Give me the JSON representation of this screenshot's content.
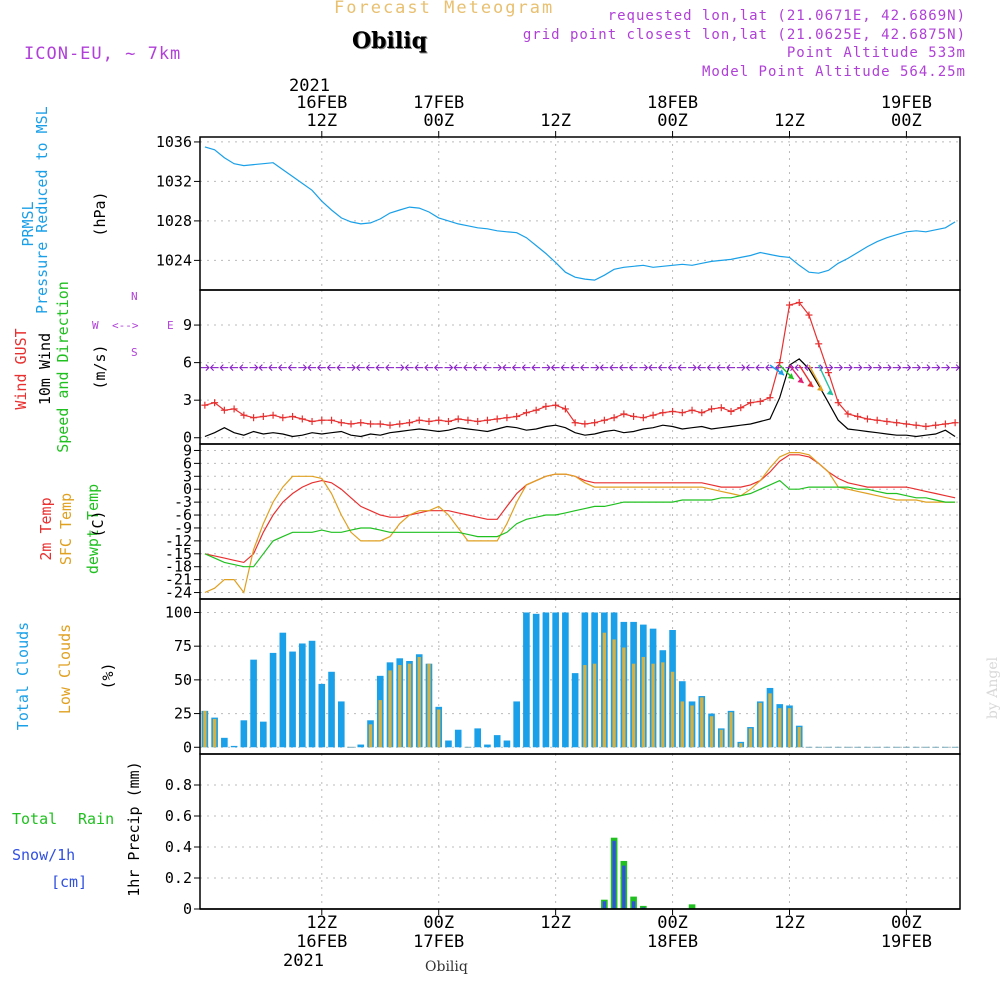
{
  "header": {
    "main_title": "Forecast Meteogram",
    "station": "Obiliq",
    "model": "ICON-EU, ~ 7km",
    "requested": "requested lon,lat (21.0671E, 42.6869N)",
    "grid_point": "grid point closest lon,lat (21.0625E, 42.6875N)",
    "point_altitude": "Point Altitude 533m",
    "model_altitude": "Model Point Altitude 564.25m",
    "credit": "by Angel",
    "footer_station": "Obiliq"
  },
  "colors": {
    "pressure": "#1aa0e8",
    "gust": "#e83030",
    "wind": "#000000",
    "temp2m": "#e83030",
    "sfc": "#e0a020",
    "dew": "#20c020",
    "total_clouds": "#1aa0e8",
    "low_clouds": "#d8b040",
    "rain": "#20c020",
    "snow": "#3050e0",
    "arrows": "#8a20c8",
    "title": "#e8c070",
    "purple": "#b040d8"
  },
  "time_axis": {
    "top_year": "2021",
    "bottom_year": "2021",
    "ticks": [
      {
        "hour": 12,
        "time": "12Z",
        "date": "16FEB"
      },
      {
        "hour": 24,
        "time": "00Z",
        "date": "17FEB"
      },
      {
        "hour": 36,
        "time": "12Z",
        "date": ""
      },
      {
        "hour": 48,
        "time": "00Z",
        "date": "18FEB"
      },
      {
        "hour": 60,
        "time": "12Z",
        "date": ""
      },
      {
        "hour": 72,
        "time": "00Z",
        "date": "19FEB"
      }
    ]
  },
  "labels": {
    "pressure": [
      "PRMSL",
      "Pressure Reduced to MSL",
      "(hPa)"
    ],
    "wind": [
      "Wind GUST",
      "10m Wind",
      "Speed and Direction",
      "(m/s)"
    ],
    "compass": {
      "n": "N",
      "s": "S",
      "w": "W",
      "e": "E"
    },
    "temp": [
      "2m Temp",
      "SFC Temp",
      "dewpt Temp",
      "(C)"
    ],
    "clouds": [
      "Total Clouds",
      "Low Clouds",
      "(%)"
    ],
    "precip": [
      "1hr Precip (mm)"
    ],
    "rain_legend": [
      "Total",
      "Rain"
    ],
    "snow_legend": [
      "Snow/1h",
      "[cm]"
    ]
  },
  "chart_data": [
    {
      "type": "line",
      "name": "pressure",
      "title": "PRMSL Pressure Reduced to MSL",
      "ylabel": "(hPa)",
      "ylim": [
        1021,
        1036.5
      ],
      "yticks": [
        1024,
        1028,
        1032,
        1036
      ],
      "x_hours": [
        0,
        1,
        2,
        3,
        4,
        5,
        6,
        7,
        8,
        9,
        10,
        11,
        12,
        13,
        14,
        15,
        16,
        17,
        18,
        19,
        20,
        21,
        22,
        23,
        24,
        25,
        26,
        27,
        28,
        29,
        30,
        31,
        32,
        33,
        34,
        35,
        36,
        37,
        38,
        39,
        40,
        41,
        42,
        43,
        44,
        45,
        46,
        47,
        48,
        49,
        50,
        51,
        52,
        53,
        54,
        55,
        56,
        57,
        58,
        59,
        60,
        61,
        62,
        63,
        64,
        65,
        66,
        67,
        68,
        69,
        70,
        71,
        72,
        73,
        74,
        75,
        76,
        77
      ],
      "series": [
        {
          "name": "PRMSL",
          "values": [
            1035.5,
            1035.2,
            1034.4,
            1033.8,
            1033.6,
            1033.7,
            1033.8,
            1033.9,
            1033.2,
            1032.5,
            1031.8,
            1031.1,
            1030.0,
            1029.1,
            1028.3,
            1027.9,
            1027.7,
            1027.8,
            1028.2,
            1028.8,
            1029.1,
            1029.4,
            1029.3,
            1028.9,
            1028.3,
            1028.0,
            1027.7,
            1027.5,
            1027.3,
            1027.2,
            1027.0,
            1026.9,
            1026.8,
            1026.3,
            1025.5,
            1024.7,
            1023.8,
            1022.8,
            1022.3,
            1022.1,
            1022.0,
            1022.5,
            1023.1,
            1023.3,
            1023.4,
            1023.5,
            1023.3,
            1023.4,
            1023.5,
            1023.6,
            1023.5,
            1023.7,
            1023.9,
            1024.0,
            1024.1,
            1024.3,
            1024.5,
            1024.8,
            1024.6,
            1024.4,
            1024.3,
            1023.5,
            1022.8,
            1022.7,
            1023.0,
            1023.7,
            1024.2,
            1024.8,
            1025.4,
            1025.9,
            1026.3,
            1026.6,
            1026.9,
            1027.0,
            1026.9,
            1027.1,
            1027.3,
            1027.9
          ]
        }
      ]
    },
    {
      "type": "line",
      "name": "wind",
      "title": "Wind GUST / 10m Wind Speed and Direction",
      "ylabel": "(m/s)",
      "ylim": [
        -0.5,
        11.8
      ],
      "yticks": [
        0,
        3,
        6,
        9
      ],
      "x_hours": [
        0,
        1,
        2,
        3,
        4,
        5,
        6,
        7,
        8,
        9,
        10,
        11,
        12,
        13,
        14,
        15,
        16,
        17,
        18,
        19,
        20,
        21,
        22,
        23,
        24,
        25,
        26,
        27,
        28,
        29,
        30,
        31,
        32,
        33,
        34,
        35,
        36,
        37,
        38,
        39,
        40,
        41,
        42,
        43,
        44,
        45,
        46,
        47,
        48,
        49,
        50,
        51,
        52,
        53,
        54,
        55,
        56,
        57,
        58,
        59,
        60,
        61,
        62,
        63,
        64,
        65,
        66,
        67,
        68,
        69,
        70,
        71,
        72,
        73,
        74,
        75,
        76,
        77
      ],
      "series": [
        {
          "name": "Wind GUST",
          "values": [
            2.6,
            2.8,
            2.2,
            2.3,
            1.8,
            1.6,
            1.7,
            1.8,
            1.6,
            1.7,
            1.5,
            1.3,
            1.4,
            1.4,
            1.2,
            1.1,
            1.2,
            1.1,
            1.1,
            1.0,
            1.1,
            1.2,
            1.4,
            1.3,
            1.4,
            1.3,
            1.5,
            1.4,
            1.3,
            1.4,
            1.5,
            1.6,
            1.7,
            2.0,
            2.2,
            2.5,
            2.6,
            2.3,
            1.2,
            1.1,
            1.2,
            1.4,
            1.6,
            1.9,
            1.7,
            1.6,
            1.8,
            2.0,
            2.1,
            2.0,
            2.2,
            2.0,
            2.3,
            2.4,
            2.1,
            2.4,
            2.8,
            2.9,
            3.2,
            6.0,
            10.6,
            10.8,
            9.8,
            7.5,
            5.2,
            2.8,
            1.9,
            1.7,
            1.5,
            1.4,
            1.3,
            1.2,
            1.1,
            1.0,
            0.9,
            1.0,
            1.1,
            1.2
          ]
        },
        {
          "name": "10m Wind",
          "values": [
            0.1,
            0.4,
            0.8,
            0.4,
            0.2,
            0.5,
            0.3,
            0.4,
            0.3,
            0.1,
            0.2,
            0.4,
            0.3,
            0.4,
            0.5,
            0.2,
            0.1,
            0.3,
            0.2,
            0.4,
            0.5,
            0.6,
            0.7,
            0.6,
            0.5,
            0.6,
            0.8,
            0.7,
            0.6,
            0.5,
            0.7,
            0.9,
            0.8,
            0.6,
            0.7,
            0.9,
            1.0,
            0.8,
            0.4,
            0.2,
            0.3,
            0.5,
            0.6,
            0.4,
            0.5,
            0.7,
            0.8,
            1.0,
            0.9,
            0.7,
            0.8,
            0.9,
            0.7,
            0.8,
            0.9,
            1.0,
            1.1,
            1.3,
            1.5,
            3.2,
            5.8,
            6.3,
            5.5,
            4.2,
            2.8,
            1.4,
            0.7,
            0.6,
            0.5,
            0.4,
            0.3,
            0.2,
            0.2,
            0.1,
            0.2,
            0.3,
            0.6,
            0.1
          ]
        }
      ],
      "direction_arrows": "westerly/easterly direction glyphs along 5.8 m/s"
    },
    {
      "type": "line",
      "name": "temperature",
      "title": "2m Temp / SFC Temp / dewpt Temp",
      "ylabel": "(C)",
      "ylim": [
        -25.5,
        10.5
      ],
      "yticks": [
        -24,
        -21,
        -18,
        -15,
        -12,
        -9,
        -6,
        -3,
        0,
        3,
        6,
        9
      ],
      "x_hours": [
        0,
        1,
        2,
        3,
        4,
        5,
        6,
        7,
        8,
        9,
        10,
        11,
        12,
        13,
        14,
        15,
        16,
        17,
        18,
        19,
        20,
        21,
        22,
        23,
        24,
        25,
        26,
        27,
        28,
        29,
        30,
        31,
        32,
        33,
        34,
        35,
        36,
        37,
        38,
        39,
        40,
        41,
        42,
        43,
        44,
        45,
        46,
        47,
        48,
        49,
        50,
        51,
        52,
        53,
        54,
        55,
        56,
        57,
        58,
        59,
        60,
        61,
        62,
        63,
        64,
        65,
        66,
        67,
        68,
        69,
        70,
        71,
        72,
        73,
        74,
        75,
        76,
        77
      ],
      "series": [
        {
          "name": "2m Temp",
          "values": [
            -15,
            -15.5,
            -16,
            -16.5,
            -17,
            -15,
            -10,
            -6,
            -3,
            -1,
            0.5,
            1.5,
            2,
            1.5,
            0,
            -2,
            -4,
            -5,
            -6,
            -6.5,
            -6.5,
            -6,
            -5.5,
            -5,
            -5,
            -5,
            -5.5,
            -6,
            -6.5,
            -7,
            -7,
            -4,
            -1,
            1,
            2,
            3,
            3.5,
            3.5,
            3,
            2,
            1.5,
            1.5,
            1.5,
            1.5,
            1.5,
            1.5,
            1.5,
            1.5,
            1.5,
            1.5,
            1.5,
            1.5,
            1,
            0.5,
            0.5,
            0.5,
            1,
            2,
            4,
            6.5,
            8,
            8,
            7.5,
            6,
            4,
            2.5,
            1.5,
            1,
            0.5,
            0.5,
            0.5,
            0.5,
            0.5,
            0,
            -0.5,
            -1,
            -1.5,
            -2
          ]
        },
        {
          "name": "SFC Temp",
          "values": [
            -24,
            -23,
            -21,
            -21,
            -24,
            -14,
            -8,
            -3,
            0.5,
            3,
            3,
            3,
            2.5,
            -1,
            -6,
            -10,
            -12,
            -12,
            -12,
            -11,
            -8,
            -6,
            -5,
            -5,
            -4,
            -6,
            -9,
            -12,
            -12,
            -12,
            -12,
            -8,
            -3,
            1,
            2,
            3,
            3.5,
            3.5,
            3,
            1.5,
            0.5,
            0.5,
            0.5,
            0.5,
            0.5,
            0.5,
            0.5,
            0.5,
            0.5,
            0.5,
            0.5,
            0.5,
            0,
            -0.5,
            -1,
            -1.5,
            0,
            2,
            5,
            7.5,
            8.5,
            8.5,
            8,
            6,
            4,
            0.5,
            0,
            -0.5,
            -1,
            -1.5,
            -2,
            -2.5,
            -2.5,
            -2.5,
            -3,
            -3,
            -3,
            -3
          ]
        },
        {
          "name": "dewpt Temp",
          "values": [
            -15,
            -16,
            -17,
            -17.5,
            -18,
            -18,
            -15,
            -12,
            -11,
            -10,
            -10,
            -10,
            -9.5,
            -10,
            -10,
            -9.5,
            -9,
            -9,
            -9.5,
            -10,
            -10,
            -10,
            -10,
            -10,
            -10,
            -10,
            -10,
            -10.5,
            -11,
            -11,
            -11,
            -10,
            -8,
            -7,
            -6.5,
            -6,
            -6,
            -5.5,
            -5,
            -4.5,
            -4,
            -4,
            -3.5,
            -3,
            -3,
            -3,
            -3,
            -3,
            -3,
            -2.5,
            -2.5,
            -2.5,
            -2.5,
            -2,
            -2,
            -1.5,
            -1,
            0,
            1,
            2,
            0,
            0,
            0.5,
            0.5,
            0.5,
            0.5,
            0.5,
            0,
            0,
            -0.5,
            -1,
            -1,
            -1.5,
            -2,
            -2,
            -2.5,
            -3,
            -3
          ]
        }
      ]
    },
    {
      "type": "bar",
      "name": "clouds",
      "title": "Total Clouds / Low Clouds",
      "ylabel": "(%)",
      "ylim": [
        -5,
        110
      ],
      "yticks": [
        0,
        25,
        50,
        75,
        100
      ],
      "x_hours": [
        0,
        1,
        2,
        3,
        4,
        5,
        6,
        7,
        8,
        9,
        10,
        11,
        12,
        13,
        14,
        15,
        16,
        17,
        18,
        19,
        20,
        21,
        22,
        23,
        24,
        25,
        26,
        27,
        28,
        29,
        30,
        31,
        32,
        33,
        34,
        35,
        36,
        37,
        38,
        39,
        40,
        41,
        42,
        43,
        44,
        45,
        46,
        47,
        48,
        49,
        50,
        51,
        52,
        53,
        54,
        55,
        56,
        57,
        58,
        59,
        60,
        61,
        62,
        63,
        64,
        65,
        66,
        67,
        68,
        69,
        70,
        71,
        72,
        73,
        74,
        75,
        76,
        77
      ],
      "series": [
        {
          "name": "Total Clouds",
          "values": [
            27,
            22,
            7,
            1,
            20,
            65,
            19,
            70,
            85,
            71,
            77,
            79,
            47,
            56,
            34,
            0,
            2,
            20,
            53,
            63,
            66,
            64,
            69,
            62,
            30,
            5,
            13,
            0,
            14,
            2,
            9,
            5,
            34,
            100,
            99,
            100,
            100,
            100,
            55,
            100,
            100,
            100,
            100,
            93,
            93,
            91,
            88,
            72,
            87,
            49,
            34,
            38,
            25,
            14,
            27,
            4,
            15,
            34,
            44,
            32,
            31,
            16,
            0,
            0,
            0,
            0,
            0,
            0,
            0,
            0,
            0,
            0,
            0,
            0,
            0,
            0,
            0,
            0
          ]
        },
        {
          "name": "Low Clouds",
          "values": [
            27,
            21,
            0,
            0,
            0,
            0,
            0,
            0,
            0,
            0,
            0,
            0,
            0,
            0,
            0,
            0,
            0,
            17,
            35,
            57,
            61,
            62,
            67,
            62,
            28,
            0,
            0,
            0,
            0,
            0,
            0,
            0,
            0,
            0,
            0,
            0,
            0,
            0,
            0,
            61,
            62,
            85,
            80,
            74,
            62,
            67,
            62,
            63,
            56,
            34,
            31,
            37,
            23,
            13,
            26,
            3,
            14,
            33,
            40,
            29,
            29,
            15,
            0,
            0,
            0,
            0,
            0,
            0,
            0,
            0,
            0,
            0,
            0,
            0,
            0,
            0,
            0,
            0
          ]
        }
      ]
    },
    {
      "type": "bar",
      "name": "precipitation",
      "title": "1hr Precip (mm)",
      "ylabel": "1hr Precip (mm)",
      "ylim": [
        0,
        1.0
      ],
      "yticks": [
        0,
        0.2,
        0.4,
        0.6,
        0.8
      ],
      "series": [
        {
          "name": "Total Rain",
          "x_hours": [
            41,
            42,
            43,
            44,
            45,
            50
          ],
          "values": [
            0.06,
            0.46,
            0.31,
            0.08,
            0.02,
            0.03
          ]
        },
        {
          "name": "Snow/1h",
          "x_hours": [
            41,
            42,
            43,
            44,
            45
          ],
          "values": [
            0.05,
            0.44,
            0.28,
            0.05,
            0.01
          ]
        }
      ]
    }
  ]
}
